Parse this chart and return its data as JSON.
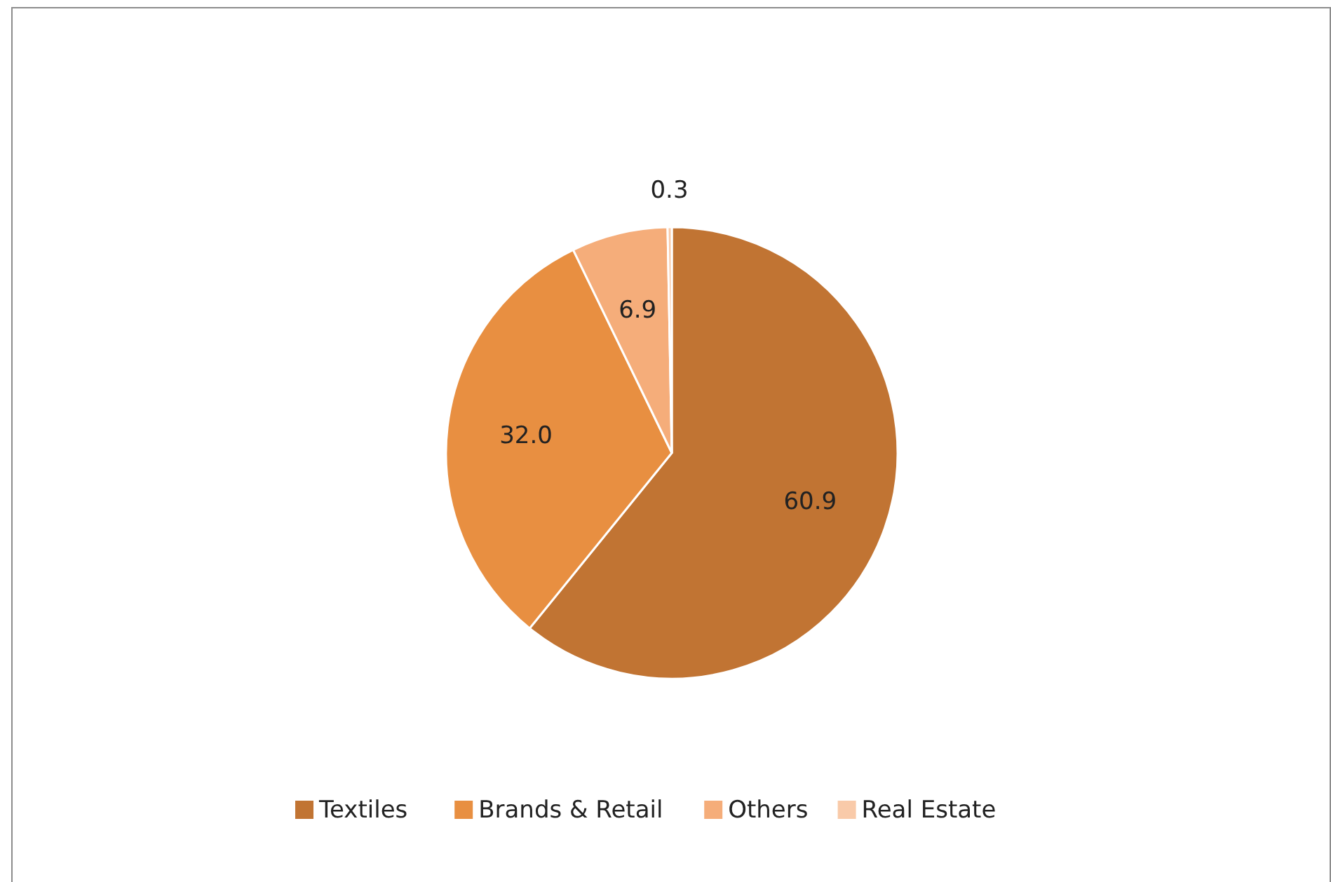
{
  "chart_data": {
    "type": "pie",
    "categories": [
      "Textiles",
      "Brands & Retail",
      "Others",
      "Real Estate"
    ],
    "values": [
      60.9,
      32.0,
      6.9,
      0.3
    ],
    "colors": [
      "#c17433",
      "#e88f41",
      "#f5ad7a",
      "#f9caa9"
    ],
    "value_labels": [
      "60.9",
      "32.0",
      "6.9",
      "0.3"
    ],
    "legend": "bottom"
  }
}
